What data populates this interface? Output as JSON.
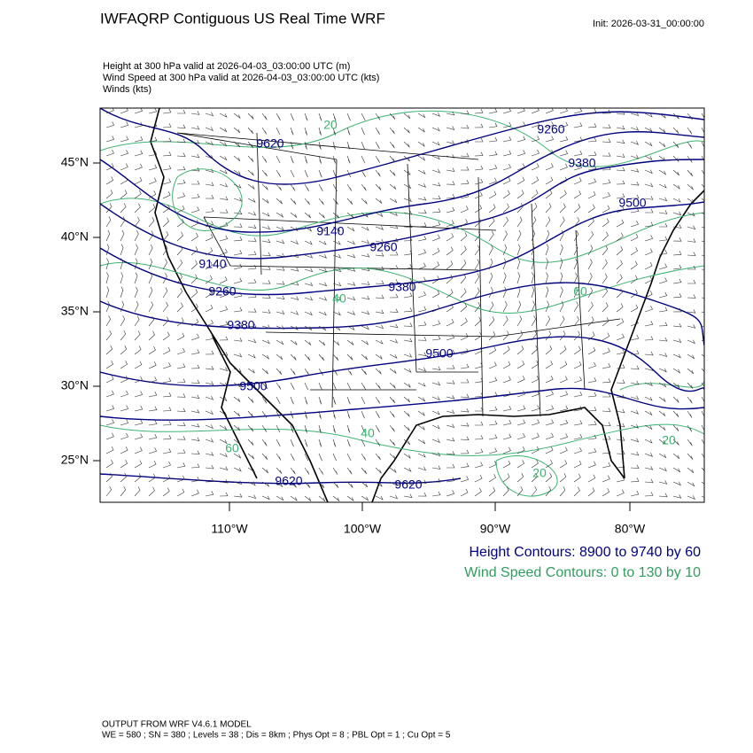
{
  "header": {
    "title": "IWFAQRP Contiguous US Real Time WRF",
    "init": "Init: 2026-03-31_00:00:00"
  },
  "fields": [
    "Height at 300 hPa valid at 2026-04-03_03:00:00 UTC   (m)",
    "Wind Speed at 300 hPa valid at 2026-04-03_03:00:00 UTC   (kts)",
    "Winds   (kts)"
  ],
  "map": {
    "lat_labels": [
      "45°N",
      "40°N",
      "35°N",
      "30°N",
      "25°N"
    ],
    "lon_labels": [
      "110°W",
      "100°W",
      "90°W",
      "80°W"
    ],
    "height_labels": [
      "9620",
      "9260",
      "9380",
      "9500",
      "9140",
      "9260",
      "9380",
      "9140",
      "9260",
      "9380",
      "9500",
      "9500",
      "9620",
      "9620"
    ],
    "wind_labels": [
      "20",
      "20",
      "20",
      "40",
      "60",
      "60",
      "40"
    ]
  },
  "legend": {
    "height": "Height Contours: 8900 to 9740 by 60",
    "wind": "Wind Speed Contours: 0 to 130 by 10"
  },
  "footer": [
    "OUTPUT FROM WRF V4.6.1 MODEL",
    "WE = 580 ; SN = 380 ; Levels = 38 ; Dis = 8km ; Phys Opt = 8 ; PBL Opt = 1 ; Cu Opt = 5"
  ]
}
